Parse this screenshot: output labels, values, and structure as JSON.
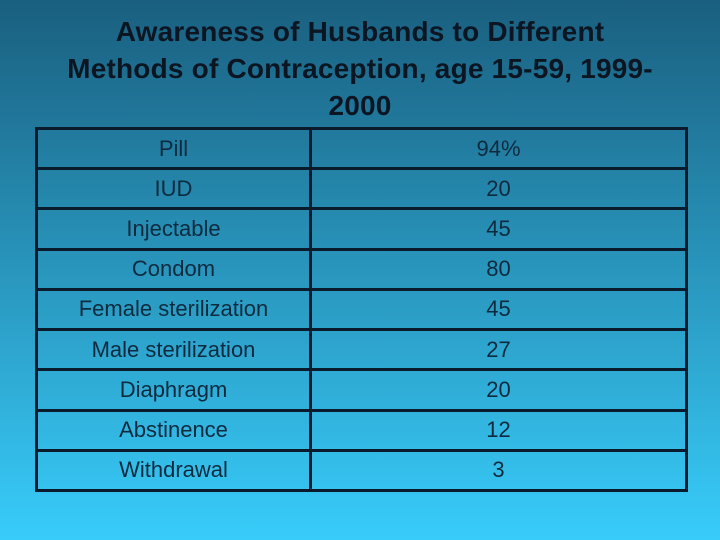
{
  "slide": {
    "title_lines": [
      "Awareness of Husbands to Different",
      "Methods of Contraception, age 15-59, 1999-",
      "2000"
    ]
  },
  "table": {
    "rows": [
      {
        "method": "Pill",
        "value": "94%"
      },
      {
        "method": "IUD",
        "value": "20"
      },
      {
        "method": "Injectable",
        "value": "45"
      },
      {
        "method": "Condom",
        "value": "80"
      },
      {
        "method": "Female sterilization",
        "value": "45"
      },
      {
        "method": "Male sterilization",
        "value": "27"
      },
      {
        "method": "Diaphragm",
        "value": "20"
      },
      {
        "method": "Abstinence",
        "value": "12"
      },
      {
        "method": "Withdrawal",
        "value": "3"
      }
    ]
  },
  "colors": {
    "background_top": "#1A5F7F",
    "background_bottom": "#38CCFA",
    "table_border": "#0A1B2B",
    "title_text": "#0B1622",
    "table_text": "#0E2A3F"
  }
}
